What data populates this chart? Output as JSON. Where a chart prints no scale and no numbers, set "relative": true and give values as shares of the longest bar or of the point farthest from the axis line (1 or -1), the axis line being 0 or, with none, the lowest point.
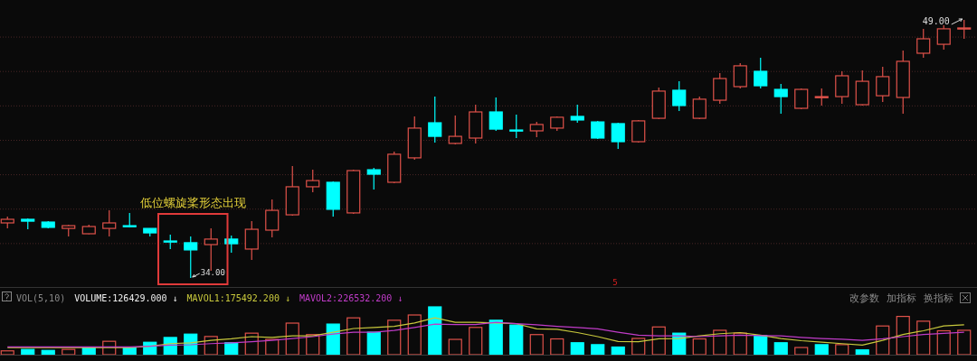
{
  "chart_data": [
    {
      "type": "candlestick",
      "tick_labels": false,
      "grid": "y",
      "categories": [
        null,
        null,
        null,
        null,
        null,
        null,
        null,
        null,
        null,
        null,
        null,
        null,
        null,
        null,
        null,
        null,
        null,
        null,
        null,
        null,
        null,
        null,
        null,
        null,
        null,
        null,
        null,
        null,
        null,
        null,
        null,
        null,
        null,
        null,
        null,
        null,
        null,
        null,
        null,
        null,
        null,
        null,
        null,
        null,
        null,
        null,
        null,
        null
      ],
      "yticks": [
        {
          "value": 36,
          "label": null
        },
        {
          "value": 38,
          "label": null
        },
        {
          "value": 40,
          "label": null
        },
        {
          "value": 42,
          "label": null
        },
        {
          "value": 44,
          "label": null
        },
        {
          "value": 46,
          "label": null
        },
        {
          "value": 48,
          "label": null
        }
      ],
      "ohlc": [
        [
          37.2,
          37.57,
          36.88,
          37.41
        ],
        [
          37.41,
          37.46,
          36.83,
          37.3
        ],
        [
          37.25,
          37.3,
          36.88,
          36.94
        ],
        [
          36.88,
          37.09,
          36.41,
          37.04
        ],
        [
          36.57,
          37.09,
          36.55,
          36.99
        ],
        [
          36.88,
          37.93,
          36.41,
          37.2
        ],
        [
          37.04,
          37.78,
          36.94,
          36.99
        ],
        [
          36.88,
          36.88,
          36.41,
          36.62
        ],
        [
          36.15,
          36.52,
          35.68,
          36.1
        ],
        [
          36.05,
          36.41,
          34.0,
          35.63
        ],
        [
          35.94,
          36.88,
          34.42,
          36.26
        ],
        [
          36.26,
          36.47,
          35.47,
          35.99
        ],
        [
          35.68,
          37.3,
          35.05,
          36.83
        ],
        [
          36.78,
          38.56,
          36.36,
          37.93
        ],
        [
          37.67,
          40.5,
          37.62,
          39.3
        ],
        [
          39.3,
          40.29,
          38.98,
          39.66
        ],
        [
          39.56,
          39.61,
          37.57,
          37.99
        ],
        [
          37.78,
          40.29,
          37.72,
          40.24
        ],
        [
          40.29,
          40.4,
          39.14,
          40.03
        ],
        [
          39.56,
          41.34,
          39.51,
          41.19
        ],
        [
          40.98,
          43.39,
          40.87,
          42.71
        ],
        [
          43.02,
          44.54,
          41.87,
          42.23
        ],
        [
          41.82,
          43.44,
          41.76,
          42.23
        ],
        [
          42.13,
          44.07,
          41.82,
          43.65
        ],
        [
          43.65,
          44.49,
          42.55,
          42.65
        ],
        [
          42.6,
          43.49,
          42.13,
          42.55
        ],
        [
          42.55,
          43.07,
          42.18,
          42.92
        ],
        [
          42.71,
          43.39,
          42.55,
          43.34
        ],
        [
          43.39,
          44.07,
          43.02,
          43.18
        ],
        [
          43.07,
          43.13,
          42.08,
          42.13
        ],
        [
          42.97,
          43.02,
          41.5,
          41.92
        ],
        [
          41.92,
          43.18,
          41.87,
          43.13
        ],
        [
          43.28,
          45.07,
          43.23,
          44.86
        ],
        [
          44.91,
          45.43,
          43.7,
          44.02
        ],
        [
          43.28,
          44.54,
          43.23,
          44.39
        ],
        [
          44.33,
          45.91,
          44.12,
          45.59
        ],
        [
          45.12,
          46.48,
          45.01,
          46.33
        ],
        [
          46.01,
          46.8,
          45.01,
          45.17
        ],
        [
          44.96,
          45.28,
          43.55,
          44.54
        ],
        [
          43.86,
          45.01,
          43.81,
          44.96
        ],
        [
          44.49,
          45.01,
          44.02,
          44.54
        ],
        [
          44.54,
          46.01,
          44.12,
          45.75
        ],
        [
          44.07,
          46.06,
          44.02,
          45.43
        ],
        [
          44.59,
          46.27,
          44.23,
          45.7
        ],
        [
          44.49,
          47.22,
          43.55,
          46.59
        ],
        [
          47.06,
          48.48,
          46.8,
          47.9
        ],
        [
          47.58,
          48.69,
          47.27,
          48.48
        ],
        [
          48.48,
          49.0,
          47.9,
          48.53
        ]
      ],
      "colors": [
        "#e0524a",
        "#00ffff",
        "#00ffff",
        "#e0524a",
        "#e0524a",
        "#e0524a",
        "#00ffff",
        "#00ffff",
        "#00ffff",
        "#00ffff",
        "#e0524a",
        "#00ffff",
        "#e0524a",
        "#e0524a",
        "#e0524a",
        "#e0524a",
        "#00ffff",
        "#e0524a",
        "#00ffff",
        "#e0524a",
        "#e0524a",
        "#00ffff",
        "#e0524a",
        "#e0524a",
        "#00ffff",
        "#00ffff",
        "#e0524a",
        "#e0524a",
        "#00ffff",
        "#00ffff",
        "#00ffff",
        "#e0524a",
        "#e0524a",
        "#00ffff",
        "#e0524a",
        "#e0524a",
        "#e0524a",
        "#00ffff",
        "#00ffff",
        "#e0524a",
        "#e0524a",
        "#e0524a",
        "#e0524a",
        "#e0524a",
        "#e0524a",
        "#e0524a",
        "#e0524a",
        "#e0524a"
      ],
      "annotations": [
        "低位螺旋桨形态出现",
        "5",
        "34.00",
        "49.00"
      ]
    },
    {
      "type": "bar",
      "relative": true,
      "tick_labels": false,
      "title": "VOL(5,10)",
      "categories": [
        null,
        null,
        null,
        null,
        null,
        null,
        null,
        null,
        null,
        null,
        null,
        null,
        null,
        null,
        null,
        null,
        null,
        null,
        null,
        null,
        null,
        null,
        null,
        null,
        null,
        null,
        null,
        null,
        null,
        null,
        null,
        null,
        null,
        null,
        null,
        null,
        null,
        null,
        null,
        null,
        null,
        null,
        null,
        null,
        null,
        null,
        null,
        null
      ],
      "series": [
        {
          "values": [
            0.08,
            0.11,
            0.09,
            0.11,
            0.14,
            0.28,
            0.14,
            0.26,
            0.36,
            0.43,
            0.38,
            0.25,
            0.45,
            0.32,
            0.66,
            0.42,
            0.64,
            0.77,
            0.47,
            0.72,
            0.83,
            1,
            0.32,
            0.57,
            0.72,
            0.62,
            0.42,
            0.33,
            0.25,
            0.21,
            0.16,
            0.34,
            0.58,
            0.45,
            0.33,
            0.51,
            0.45,
            0.4,
            0.25,
            0.15,
            0.21,
            0.21,
            0.1,
            0.6,
            0.8,
            0.7,
            0.5,
            0.51
          ],
          "colors": [
            "#e0524a",
            "#00ffff",
            "#00ffff",
            "#e0524a",
            "#00ffff",
            "#e0524a",
            "#00ffff",
            "#00ffff",
            "#00ffff",
            "#00ffff",
            "#e0524a",
            "#00ffff",
            "#e0524a",
            "#e0524a",
            "#e0524a",
            "#e0524a",
            "#00ffff",
            "#e0524a",
            "#00ffff",
            "#e0524a",
            "#e0524a",
            "#00ffff",
            "#e0524a",
            "#e0524a",
            "#00ffff",
            "#00ffff",
            "#e0524a",
            "#e0524a",
            "#00ffff",
            "#00ffff",
            "#00ffff",
            "#e0524a",
            "#e0524a",
            "#00ffff",
            "#e0524a",
            "#e0524a",
            "#e0524a",
            "#00ffff",
            "#00ffff",
            "#e0524a",
            "#00ffff",
            "#e0524a",
            "#00ffff",
            "#e0524a",
            "#e0524a",
            "#e0524a",
            "#e0524a",
            "#e0524a"
          ]
        }
      ],
      "annotations": [
        "VOLUME:126429.000 ↓",
        "改参数",
        "加指标",
        "换指标"
      ]
    },
    {
      "type": "line",
      "relative": true,
      "tick_labels": false,
      "categories": [
        null,
        null,
        null,
        null,
        null,
        null,
        null,
        null,
        null,
        null,
        null,
        null,
        null,
        null,
        null,
        null,
        null,
        null,
        null,
        null,
        null,
        null,
        null,
        null,
        null,
        null,
        null,
        null,
        null,
        null,
        null,
        null,
        null,
        null,
        null,
        null,
        null,
        null,
        null,
        null,
        null,
        null,
        null,
        null,
        null,
        null,
        null,
        null
      ],
      "series": [
        {
          "name": "MAVOL1:175492.200 ↓",
          "color": "#c8c83c",
          "values": [
            0.19,
            0.19,
            0.19,
            0.19,
            0.19,
            0.19,
            0.19,
            0.23,
            0.3,
            0.32,
            0.39,
            0.43,
            0.49,
            0.47,
            0.51,
            0.51,
            0.61,
            0.71,
            0.74,
            0.77,
            0.86,
            1,
            0.88,
            0.88,
            0.86,
            0.84,
            0.7,
            0.69,
            0.6,
            0.49,
            0.36,
            0.35,
            0.43,
            0.44,
            0.51,
            0.57,
            0.6,
            0.53,
            0.44,
            0.38,
            0.34,
            0.3,
            0.26,
            0.39,
            0.55,
            0.65,
            0.78,
            0.81
          ]
        },
        {
          "name": "MAVOL2:226532.200 ↓",
          "color": "#c03cc8",
          "values": [
            0.21,
            0.21,
            0.21,
            0.21,
            0.21,
            0.21,
            0.21,
            0.23,
            0.26,
            0.27,
            0.3,
            0.32,
            0.35,
            0.39,
            0.44,
            0.49,
            0.56,
            0.61,
            0.61,
            0.66,
            0.74,
            0.83,
            0.82,
            0.82,
            0.88,
            0.84,
            0.81,
            0.77,
            0.74,
            0.7,
            0.61,
            0.53,
            0.51,
            0.51,
            0.49,
            0.51,
            0.53,
            0.52,
            0.51,
            0.47,
            0.44,
            0.42,
            0.39,
            0.43,
            0.49,
            0.55,
            0.58,
            0.61
          ]
        }
      ]
    }
  ]
}
